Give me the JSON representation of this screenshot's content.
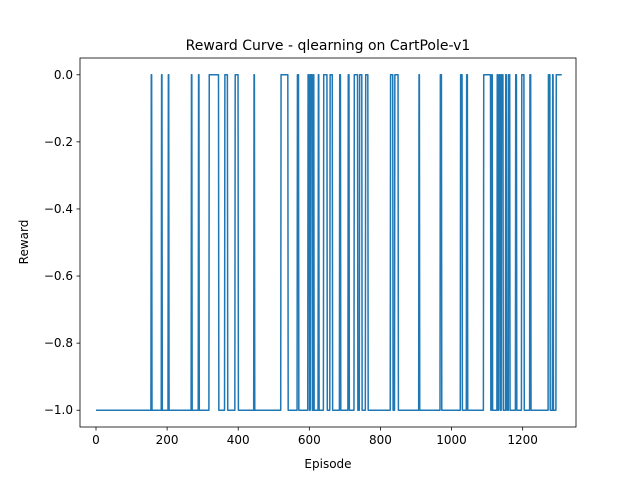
{
  "chart_data": {
    "type": "line",
    "title": "Reward Curve - qlearning on CartPole-v1",
    "xlabel": "Episode",
    "ylabel": "Reward",
    "xlim": [
      -45,
      1350
    ],
    "ylim": [
      -1.05,
      0.05
    ],
    "xticks": [
      0,
      200,
      400,
      600,
      800,
      1000,
      1200
    ],
    "yticks": [
      -1.0,
      -0.8,
      -0.6,
      -0.4,
      -0.2,
      0.0
    ],
    "ytick_labels": [
      "−1.0",
      "−0.8",
      "−0.6",
      "−0.4",
      "−0.2",
      "0.0"
    ],
    "grid": false,
    "legend": "none",
    "color": "#1f77b4",
    "x_range": [
      0,
      1310
    ],
    "baseline": -1.0,
    "success_value": 0.0,
    "success_intervals": [
      [
        155,
        157
      ],
      [
        184,
        186
      ],
      [
        203,
        205
      ],
      [
        268,
        270
      ],
      [
        288,
        290
      ],
      [
        318,
        345
      ],
      [
        362,
        370
      ],
      [
        391,
        400
      ],
      [
        444,
        446
      ],
      [
        520,
        540
      ],
      [
        566,
        570
      ],
      [
        596,
        600
      ],
      [
        603,
        608
      ],
      [
        611,
        613
      ],
      [
        625,
        627
      ],
      [
        640,
        650
      ],
      [
        658,
        665
      ],
      [
        685,
        688
      ],
      [
        709,
        712
      ],
      [
        726,
        736
      ],
      [
        741,
        748
      ],
      [
        758,
        765
      ],
      [
        828,
        835
      ],
      [
        840,
        850
      ],
      [
        908,
        910
      ],
      [
        968,
        972
      ],
      [
        1025,
        1030
      ],
      [
        1042,
        1045
      ],
      [
        1090,
        1110
      ],
      [
        1113,
        1115
      ],
      [
        1128,
        1130
      ],
      [
        1133,
        1137
      ],
      [
        1140,
        1145
      ],
      [
        1152,
        1155
      ],
      [
        1160,
        1164
      ],
      [
        1180,
        1183
      ],
      [
        1197,
        1204
      ],
      [
        1220,
        1223
      ],
      [
        1272,
        1277
      ],
      [
        1284,
        1286
      ],
      [
        1294,
        1310
      ]
    ]
  }
}
